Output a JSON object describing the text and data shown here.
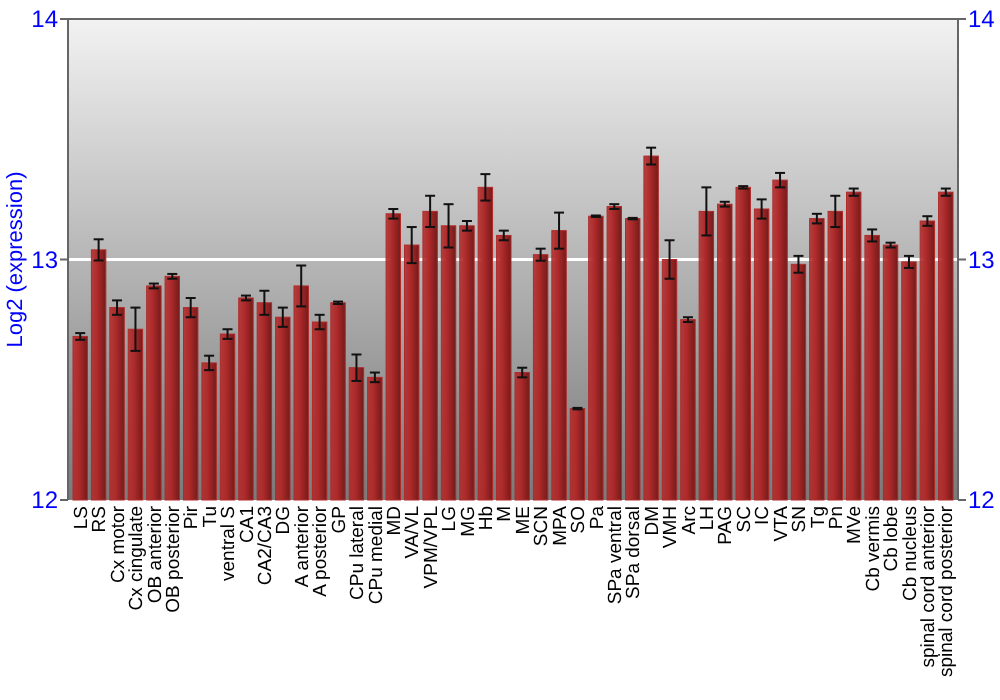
{
  "chart_data": {
    "type": "bar",
    "ylabel": "Log2 (expression)",
    "categories": [
      "LS",
      "RS",
      "Cx motor",
      "Cx cingulate",
      "OB anterior",
      "OB posterior",
      "Pir",
      "Tu",
      "ventral S",
      "CA1",
      "CA2/CA3",
      "DG",
      "A anterior",
      "A posterior",
      "GP",
      "CPu lateral",
      "CPu medial",
      "MD",
      "VA/VL",
      "VPM/VPL",
      "LG",
      "MG",
      "Hb",
      "M",
      "ME",
      "SCN",
      "MPA",
      "SO",
      "Pa",
      "SPa ventral",
      "SPa dorsal",
      "DM",
      "VMH",
      "Arc",
      "LH",
      "PAG",
      "SC",
      "IC",
      "VTA",
      "SN",
      "Tg",
      "Pn",
      "MVe",
      "Cb vermis",
      "Cb lobe",
      "Cb nucleus",
      "spinal cord anterior",
      "spinal cord posterior"
    ],
    "values": [
      12.68,
      13.04,
      12.8,
      12.71,
      12.89,
      12.93,
      12.8,
      12.57,
      12.69,
      12.84,
      12.82,
      12.76,
      12.89,
      12.74,
      12.82,
      12.55,
      12.51,
      13.19,
      13.06,
      13.2,
      13.14,
      13.14,
      13.3,
      13.1,
      12.53,
      13.02,
      13.12,
      12.38,
      13.18,
      13.22,
      13.17,
      13.43,
      13.0,
      12.75,
      13.2,
      13.23,
      13.3,
      13.21,
      13.33,
      12.98,
      13.17,
      13.2,
      13.28,
      13.1,
      13.06,
      12.99,
      13.16,
      13.28
    ],
    "errors": [
      0.014,
      0.044,
      0.03,
      0.09,
      0.01,
      0.01,
      0.04,
      0.03,
      0.02,
      0.01,
      0.05,
      0.04,
      0.085,
      0.03,
      0.005,
      0.055,
      0.02,
      0.02,
      0.075,
      0.065,
      0.09,
      0.02,
      0.055,
      0.02,
      0.02,
      0.025,
      0.075,
      0.003,
      0.003,
      0.01,
      0.003,
      0.035,
      0.08,
      0.01,
      0.1,
      0.01,
      0.005,
      0.04,
      0.03,
      0.035,
      0.02,
      0.065,
      0.015,
      0.025,
      0.01,
      0.025,
      0.02,
      0.015
    ],
    "color": "#b02a2a",
    "ylim": [
      12,
      14
    ],
    "yticks": [
      12,
      13,
      14
    ],
    "y2lim": [
      12,
      14
    ],
    "y2ticks": [
      12,
      13,
      14
    ],
    "grid": "y"
  }
}
